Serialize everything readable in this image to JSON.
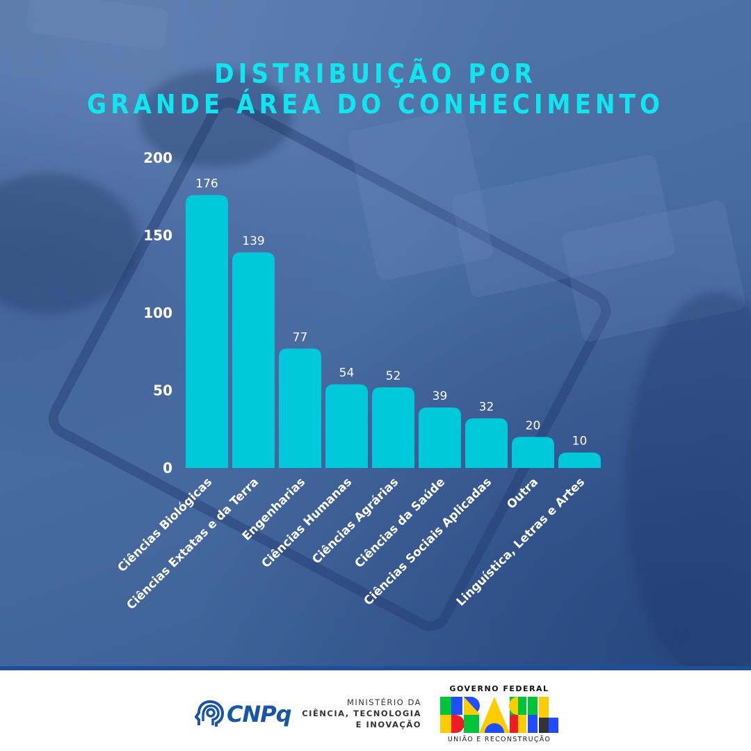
{
  "title": {
    "line1": "DISTRIBUIÇÃO POR",
    "line2": "GRANDE ÁREA DO CONHECIMENTO"
  },
  "chart_data": {
    "type": "bar",
    "title": "DISTRIBUIÇÃO POR GRANDE ÁREA DO CONHECIMENTO",
    "xlabel": "",
    "ylabel": "",
    "ylim": [
      0,
      200
    ],
    "yticks": [
      0,
      50,
      100,
      150,
      200
    ],
    "grid": false,
    "legend": "none",
    "bar_color": "#00c9dc",
    "categories": [
      "Ciências Biológicas",
      "Ciências Extatas e da Terra",
      "Engenharias",
      "Ciências Humanas",
      "Ciências Agrárias",
      "Ciências da Saúde",
      "Ciências Sociais Aplicadas",
      "Outra",
      "Linguística, Letras e Artes"
    ],
    "values": [
      176,
      139,
      77,
      54,
      52,
      39,
      32,
      20,
      10
    ],
    "data_labels": [
      "176",
      "139",
      "77",
      "54",
      "52",
      "39",
      "32",
      "20",
      "10"
    ]
  },
  "colors": {
    "title": "#10e6f0",
    "bar": "#00c9dc",
    "background": "#4a6ea3",
    "accent_strip": "#1e4e95",
    "cnpq_blue": "#1856a8"
  },
  "footer": {
    "cnpq": "CNPq",
    "ministry_line1": "MINISTÉRIO DA",
    "ministry_line2": "CIÊNCIA, TECNOLOGIA",
    "ministry_line3": "E INOVAÇÃO",
    "gov_top": "GOVERNO FEDERAL",
    "gov_word": "BRASIL",
    "gov_bottom": "UNIÃO E RECONSTRUÇÃO"
  }
}
